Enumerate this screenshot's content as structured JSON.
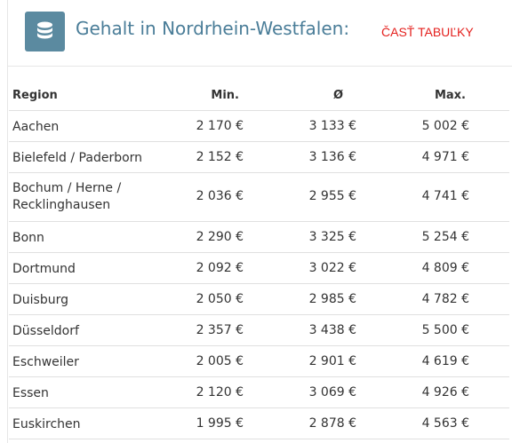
{
  "header": {
    "title": "Gehalt in Nordrhein-Westfalen:",
    "link": "ČASŤ TABUĽKY",
    "icon": "database-icon"
  },
  "table": {
    "columns": [
      "Region",
      "Min.",
      "Ø",
      "Max."
    ],
    "rows": [
      {
        "region": "Aachen",
        "min": "2 170 €",
        "avg": "3 133 €",
        "max": "5 002 €"
      },
      {
        "region": "Bielefeld / Paderborn",
        "min": "2 152 €",
        "avg": "3 136 €",
        "max": "4 971 €"
      },
      {
        "region": "Bochum / Herne / Recklinghausen",
        "min": "2 036 €",
        "avg": "2 955 €",
        "max": "4 741 €"
      },
      {
        "region": "Bonn",
        "min": "2 290 €",
        "avg": "3 325 €",
        "max": "5 254 €"
      },
      {
        "region": "Dortmund",
        "min": "2 092 €",
        "avg": "3 022 €",
        "max": "4 809 €"
      },
      {
        "region": "Duisburg",
        "min": "2 050 €",
        "avg": "2 985 €",
        "max": "4 782 €"
      },
      {
        "region": "Düsseldorf",
        "min": "2 357 €",
        "avg": "3 438 €",
        "max": "5 500 €"
      },
      {
        "region": "Eschweiler",
        "min": "2 005 €",
        "avg": "2 901 €",
        "max": "4 619 €"
      },
      {
        "region": "Essen",
        "min": "2 120 €",
        "avg": "3 069 €",
        "max": "4 926 €"
      },
      {
        "region": "Euskirchen",
        "min": "1 995 €",
        "avg": "2 878 €",
        "max": "4 563 €"
      }
    ]
  },
  "colors": {
    "accent": "#5b8aa0",
    "title": "#4a7d98",
    "link": "#e4201d"
  }
}
